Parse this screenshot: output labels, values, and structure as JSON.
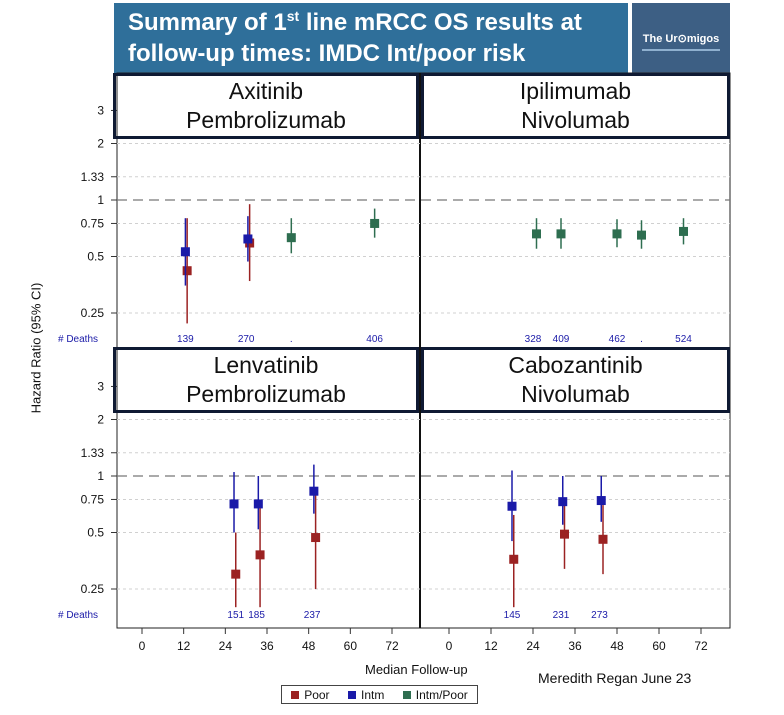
{
  "header": {
    "title_line1_pre": "Summary of 1",
    "title_line1_sup": "st",
    "title_line1_post": " line mRCC OS results at",
    "title_line2": "follow-up times: IMDC Int/poor risk",
    "logo_text": "The Ur⊙migos"
  },
  "footer": {
    "credit": "Meredith Regan June 23"
  },
  "colors": {
    "poor": "#9b2222",
    "intm": "#1a1aa8",
    "intm_poor": "#2e6e50",
    "reference": "#777777"
  },
  "chart_data": {
    "type": "forest-scatter",
    "y_scale": "log",
    "ylabel": "Hazard Ratio (95% CI)",
    "xlabel": "Median Follow-up",
    "y_ticks": [
      3,
      2,
      1.33,
      1,
      0.75,
      0.5,
      0.25
    ],
    "y_tick_labels": [
      "3",
      "2",
      "1.33",
      "1",
      "0.75",
      "0.5",
      "0.25"
    ],
    "x_ticks": [
      0,
      12,
      24,
      36,
      48,
      60,
      72
    ],
    "reference_line": 1,
    "deaths_label": "# Deaths",
    "legend": [
      {
        "key": "poor",
        "label": "Poor"
      },
      {
        "key": "intm",
        "label": "Intm"
      },
      {
        "key": "intm_poor",
        "label": "Intm/Poor"
      }
    ],
    "panels": [
      {
        "title": "Axitinib\nPembrolizumab",
        "header_color": "#d9d9d9",
        "points": [
          {
            "group": "poor",
            "x": 13,
            "hr": 0.42,
            "lo": 0.22,
            "hi": 0.8
          },
          {
            "group": "intm",
            "x": 12.5,
            "hr": 0.53,
            "lo": 0.35,
            "hi": 0.8
          },
          {
            "group": "poor",
            "x": 31,
            "hr": 0.59,
            "lo": 0.37,
            "hi": 0.95
          },
          {
            "group": "intm",
            "x": 30.5,
            "hr": 0.62,
            "lo": 0.47,
            "hi": 0.82
          },
          {
            "group": "intm_poor",
            "x": 43,
            "hr": 0.63,
            "lo": 0.52,
            "hi": 0.8
          },
          {
            "group": "intm_poor",
            "x": 67,
            "hr": 0.75,
            "lo": 0.63,
            "hi": 0.9
          }
        ],
        "deaths": [
          {
            "x": 12.5,
            "label": "139"
          },
          {
            "x": 30,
            "label": "270"
          },
          {
            "x": 43,
            "label": "."
          },
          {
            "x": 67,
            "label": "406"
          }
        ]
      },
      {
        "title": "Ipilimumab\nNivolumab",
        "header_color": "#e8c5dc",
        "points": [
          {
            "group": "intm_poor",
            "x": 25,
            "hr": 0.66,
            "lo": 0.55,
            "hi": 0.8
          },
          {
            "group": "intm_poor",
            "x": 32,
            "hr": 0.66,
            "lo": 0.55,
            "hi": 0.8
          },
          {
            "group": "intm_poor",
            "x": 48,
            "hr": 0.66,
            "lo": 0.56,
            "hi": 0.79
          },
          {
            "group": "intm_poor",
            "x": 55,
            "hr": 0.65,
            "lo": 0.55,
            "hi": 0.78
          },
          {
            "group": "intm_poor",
            "x": 67,
            "hr": 0.68,
            "lo": 0.58,
            "hi": 0.8
          }
        ],
        "deaths": [
          {
            "x": 24,
            "label": "328"
          },
          {
            "x": 32,
            "label": "409"
          },
          {
            "x": 48,
            "label": "462"
          },
          {
            "x": 55,
            "label": "."
          },
          {
            "x": 67,
            "label": "524"
          }
        ]
      },
      {
        "title": "Lenvatinib\nPembrolizumab",
        "header_color": "#8ea3d8",
        "points": [
          {
            "group": "poor",
            "x": 27,
            "hr": 0.3,
            "lo": 0.2,
            "hi": 0.5
          },
          {
            "group": "intm",
            "x": 26.5,
            "hr": 0.71,
            "lo": 0.5,
            "hi": 1.05
          },
          {
            "group": "poor",
            "x": 34,
            "hr": 0.38,
            "lo": 0.2,
            "hi": 0.7
          },
          {
            "group": "intm",
            "x": 33.5,
            "hr": 0.71,
            "lo": 0.52,
            "hi": 1.0
          },
          {
            "group": "poor",
            "x": 50,
            "hr": 0.47,
            "lo": 0.25,
            "hi": 0.8
          },
          {
            "group": "intm",
            "x": 49.5,
            "hr": 0.83,
            "lo": 0.63,
            "hi": 1.15
          }
        ],
        "deaths": [
          {
            "x": 27,
            "label": "151"
          },
          {
            "x": 33,
            "label": "185"
          },
          {
            "x": 49,
            "label": "237"
          }
        ]
      },
      {
        "title": "Cabozantinib\nNivolumab",
        "header_color": "#d9d9a6",
        "points": [
          {
            "group": "poor",
            "x": 18.5,
            "hr": 0.36,
            "lo": 0.2,
            "hi": 0.62
          },
          {
            "group": "intm",
            "x": 18,
            "hr": 0.69,
            "lo": 0.45,
            "hi": 1.07
          },
          {
            "group": "poor",
            "x": 33,
            "hr": 0.49,
            "lo": 0.32,
            "hi": 0.75
          },
          {
            "group": "intm",
            "x": 32.5,
            "hr": 0.73,
            "lo": 0.55,
            "hi": 1.0
          },
          {
            "group": "poor",
            "x": 44,
            "hr": 0.46,
            "lo": 0.3,
            "hi": 0.7
          },
          {
            "group": "intm",
            "x": 43.5,
            "hr": 0.74,
            "lo": 0.57,
            "hi": 1.0
          }
        ],
        "deaths": [
          {
            "x": 18,
            "label": "145"
          },
          {
            "x": 32,
            "label": "231"
          },
          {
            "x": 43,
            "label": "273"
          }
        ]
      }
    ]
  }
}
